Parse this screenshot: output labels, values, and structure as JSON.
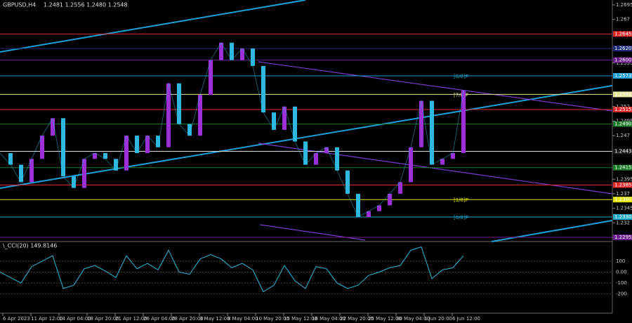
{
  "header": {
    "symbol": "GBPUSD,H4",
    "ohlc": "1.2481 1.2556 1.2480 1.2548"
  },
  "price_axis": {
    "ylim": [
      1.2295,
      1.2695
    ],
    "ticks": [
      1.2695,
      1.267,
      1.2595,
      1.252,
      1.2495,
      1.247,
      1.2395,
      1.237,
      1.2345,
      1.232,
      1.2295
    ],
    "levels": [
      {
        "value": 1.2645,
        "color": "#e0282b"
      },
      {
        "value": 1.262,
        "color": "#1c2a78"
      },
      {
        "value": 1.26,
        "color": "#6a1e8c"
      },
      {
        "value": 1.2573,
        "color": "#1c9fd8"
      },
      {
        "value": 1.2541,
        "color": "#e6e6a0"
      },
      {
        "value": 1.2515,
        "color": "#e0282b"
      },
      {
        "value": 1.249,
        "color": "#1e7a2a"
      },
      {
        "value": 1.2443,
        "color": "#1a1a1a"
      },
      {
        "value": 1.2415,
        "color": "#1e7a2a"
      },
      {
        "value": 1.2385,
        "color": "#e0282b"
      },
      {
        "value": 1.236,
        "color": "#e6e600"
      },
      {
        "value": 1.233,
        "color": "#1ca8c8"
      },
      {
        "value": 1.2295,
        "color": "#6a1e8c"
      }
    ],
    "murrey": [
      {
        "label": "[6/8]P",
        "value": 1.2573,
        "color": "#1ca8c8"
      },
      {
        "label": "[7/8]P",
        "value": 1.2541,
        "color": "#e6e6a0"
      },
      {
        "label": "[1/8]P",
        "value": 1.236,
        "color": "#e6e600"
      },
      {
        "label": "[0/8]P",
        "value": 1.233,
        "color": "#1ca8c8"
      }
    ]
  },
  "time_axis": {
    "labels": [
      "6 Apr 2023",
      "11 Apr 12:00",
      "14 Apr 04:00",
      "18 Apr 20:00",
      "21 Apr 12:00",
      "26 Apr 04:00",
      "28 Apr 20:00",
      "3 May 12:00",
      "8 May 04:00",
      "10 May 20:00",
      "15 May 12:00",
      "18 May 04:00",
      "22 May 20:00",
      "25 May 12:00",
      "30 May 04:00",
      "1 Jun 20:00",
      "6 Jun 12:00"
    ]
  },
  "price": {
    "closes": [
      1.244,
      1.242,
      1.239,
      1.243,
      1.247,
      1.25,
      1.24,
      1.238,
      1.243,
      1.244,
      1.243,
      1.241,
      1.247,
      1.244,
      1.247,
      1.245,
      1.256,
      1.249,
      1.247,
      1.254,
      1.26,
      1.263,
      1.26,
      1.262,
      1.259,
      1.251,
      1.248,
      1.252,
      1.246,
      1.242,
      1.244,
      1.245,
      1.241,
      1.237,
      1.233,
      1.234,
      1.235,
      1.237,
      1.239,
      1.245,
      1.253,
      1.242,
      1.243,
      1.244,
      1.2548
    ]
  },
  "indicator": {
    "name": "\\_CCI(20) 149.8146",
    "ylim": [
      -350,
      260
    ],
    "ticks": [
      100,
      {
        "value": 0,
        "label": "0.00"
      },
      -100,
      -200
    ],
    "values": [
      0,
      -50,
      -100,
      50,
      100,
      150,
      -150,
      -120,
      30,
      60,
      10,
      -50,
      150,
      30,
      80,
      20,
      200,
      0,
      -20,
      120,
      160,
      120,
      40,
      80,
      20,
      -180,
      -120,
      60,
      -80,
      -150,
      50,
      30,
      -100,
      -150,
      -120,
      -30,
      0,
      40,
      60,
      200,
      230,
      -60,
      20,
      40,
      149.8146
    ]
  }
}
